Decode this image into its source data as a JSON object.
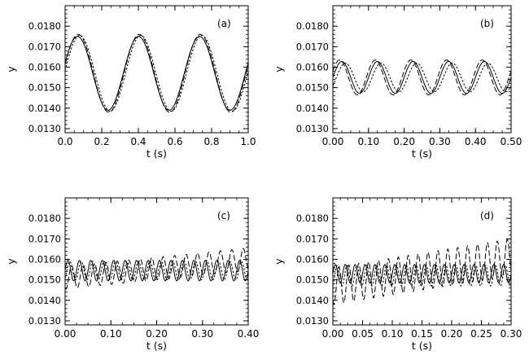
{
  "chart_data": [
    {
      "type": "line",
      "panel_label": "(a)",
      "xlabel": "t (s)",
      "ylabel": "y",
      "xlim": [
        0.0,
        1.0
      ],
      "ylim": [
        0.0128,
        0.019
      ],
      "xticks": [
        "0.0",
        "0.2",
        "0.4",
        "0.6",
        "0.8",
        "1.0"
      ],
      "xtick_values": [
        0.0,
        0.2,
        0.4,
        0.6,
        0.8,
        1.0
      ],
      "yticks": [
        "0.0130",
        "0.0140",
        "0.0150",
        "0.0160",
        "0.0170",
        "0.0180"
      ],
      "ytick_values": [
        0.013,
        0.014,
        0.015,
        0.016,
        0.017,
        0.018
      ],
      "series": [
        {
          "style": "solid",
          "freq_hz": 3.0,
          "base": 0.0157,
          "amp": 0.0018,
          "phase": -0.0157,
          "drift": 0.0,
          "mod": 0.0
        },
        {
          "style": "short-dash",
          "freq_hz": 3.0,
          "base": 0.0157,
          "amp": 0.00185,
          "phase": -0.004,
          "drift": 0.0,
          "mod": 0.0
        },
        {
          "style": "long-dash",
          "freq_hz": 3.0,
          "base": 0.0157,
          "amp": 0.0019,
          "phase": -0.012,
          "drift": 0.0,
          "mod": 0.0
        }
      ]
    },
    {
      "type": "line",
      "panel_label": "(b)",
      "xlabel": "t (s)",
      "ylabel": "y",
      "xlim": [
        0.0,
        0.5
      ],
      "ylim": [
        0.0128,
        0.019
      ],
      "xticks": [
        "0.00",
        "0.10",
        "0.20",
        "0.30",
        "0.40",
        "0.50"
      ],
      "xtick_values": [
        0.0,
        0.1,
        0.2,
        0.3,
        0.4,
        0.5
      ],
      "yticks": [
        "0.0130",
        "0.0140",
        "0.0150",
        "0.0160",
        "0.0170",
        "0.0180"
      ],
      "ytick_values": [
        0.013,
        0.014,
        0.015,
        0.016,
        0.017,
        0.018
      ],
      "series": [
        {
          "style": "solid",
          "freq_hz": 10.0,
          "base": 0.0155,
          "amp": 0.00078,
          "phase": 0.0,
          "drift": 0.0,
          "mod": 0.0
        },
        {
          "style": "short-dash",
          "freq_hz": 10.0,
          "base": 0.0155,
          "amp": 0.0007,
          "phase": 0.01,
          "drift": 0.0,
          "mod": 0.0
        },
        {
          "style": "long-dash",
          "freq_hz": 10.0,
          "base": 0.0155,
          "amp": 0.00085,
          "phase": -0.006,
          "drift": 0.0,
          "mod": 0.0
        }
      ]
    },
    {
      "type": "line",
      "panel_label": "(c)",
      "xlabel": "t (s)",
      "ylabel": "y",
      "xlim": [
        0.0,
        0.4
      ],
      "ylim": [
        0.0128,
        0.019
      ],
      "xticks": [
        "0.00",
        "0.10",
        "0.20",
        "0.30",
        "0.40"
      ],
      "xtick_values": [
        0.0,
        0.1,
        0.2,
        0.3,
        0.4
      ],
      "yticks": [
        "0.0130",
        "0.0140",
        "0.0150",
        "0.0160",
        "0.0170",
        "0.0180"
      ],
      "ytick_values": [
        0.013,
        0.014,
        0.015,
        0.016,
        0.017,
        0.018
      ],
      "series": [
        {
          "style": "solid",
          "freq_hz": 40.0,
          "base": 0.01545,
          "amp": 0.0005,
          "phase": 0.0,
          "drift": 0.0,
          "mod": 0.0
        },
        {
          "style": "short-dash",
          "freq_hz": 40.0,
          "base": 0.01545,
          "amp": 0.00045,
          "phase": 0.004,
          "drift": 0.0,
          "mod": 0.0
        },
        {
          "style": "long-dash",
          "freq_hz": 40.0,
          "base": 0.0151,
          "amp": 0.00055,
          "phase": 0.008,
          "drift": 0.0009,
          "mod": 0.0
        }
      ]
    },
    {
      "type": "line",
      "panel_label": "(d)",
      "xlabel": "t (s)",
      "ylabel": "y",
      "xlim": [
        0.0,
        0.3
      ],
      "ylim": [
        0.0128,
        0.019
      ],
      "xticks": [
        "0.00",
        "0.05",
        "0.10",
        "0.15",
        "0.20",
        "0.25",
        "0.30"
      ],
      "xtick_values": [
        0.0,
        0.05,
        0.1,
        0.15,
        0.2,
        0.25,
        0.3
      ],
      "yticks": [
        "0.0130",
        "0.0140",
        "0.0150",
        "0.0160",
        "0.0170",
        "0.0180"
      ],
      "ytick_values": [
        0.013,
        0.014,
        0.015,
        0.016,
        0.017,
        0.018
      ],
      "series": [
        {
          "style": "solid",
          "freq_hz": 60.0,
          "base": 0.0153,
          "amp": 0.00045,
          "phase": 0.0,
          "drift": 0.0,
          "mod": 0.0
        },
        {
          "style": "short-dash",
          "freq_hz": 60.0,
          "base": 0.0152,
          "amp": 0.0005,
          "phase": 0.003,
          "drift": 0.0,
          "mod": 0.0
        },
        {
          "style": "long-dash",
          "freq_hz": 60.0,
          "base": 0.0147,
          "amp": 0.0009,
          "phase": 0.006,
          "drift": 0.0014,
          "mod": 0.0
        }
      ]
    }
  ]
}
